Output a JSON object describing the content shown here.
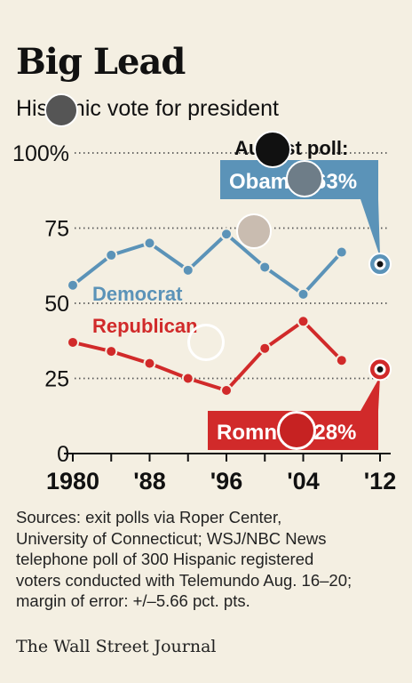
{
  "header": {
    "title": "Big Lead",
    "subtitle": "Hispanic vote for president"
  },
  "chart_data": {
    "type": "line",
    "title": "Big Lead",
    "subtitle": "Hispanic vote for president",
    "xlabel": "",
    "ylabel": "",
    "xlim": [
      1980,
      2012
    ],
    "ylim": [
      0,
      100
    ],
    "x_ticks": [
      1980,
      1984,
      1988,
      1992,
      1996,
      2000,
      2004,
      2008,
      2012
    ],
    "x_tick_labels": [
      "1980",
      "",
      "'88",
      "",
      "'96",
      "",
      "'04",
      "",
      "'12"
    ],
    "y_ticks": [
      0,
      25,
      50,
      75,
      100
    ],
    "y_tick_labels": [
      "0",
      "25",
      "50",
      "75",
      "100%"
    ],
    "grid": "horizontal dotted",
    "series": [
      {
        "name": "Democrat",
        "color": "#5b93b8",
        "x": [
          1980,
          1984,
          1988,
          1992,
          1996,
          2000,
          2004,
          2008
        ],
        "values": [
          56,
          66,
          70,
          61,
          73,
          62,
          53,
          67
        ]
      },
      {
        "name": "Republican",
        "color": "#d12a2a",
        "x": [
          1980,
          1984,
          1988,
          1992,
          1996,
          2000,
          2004,
          2008
        ],
        "values": [
          37,
          34,
          30,
          25,
          21,
          35,
          44,
          31
        ]
      }
    ],
    "poll": {
      "heading": "August poll:",
      "x": 2012,
      "points": [
        {
          "label": "Obama: 63%",
          "value": 63,
          "color": "#5b93b8"
        },
        {
          "label": "Romney: 28%",
          "value": 28,
          "color": "#d12a2a"
        }
      ]
    }
  },
  "footer": {
    "sources": [
      "Sources: exit polls via Roper Center,",
      "University of Connecticut; WSJ/NBC News",
      "telephone poll of 300 Hispanic registered",
      "voters conducted with Telemundo Aug. 16–20;",
      "margin of error: +/–5.66 pct. pts."
    ],
    "credit": "The Wall Street Journal"
  }
}
